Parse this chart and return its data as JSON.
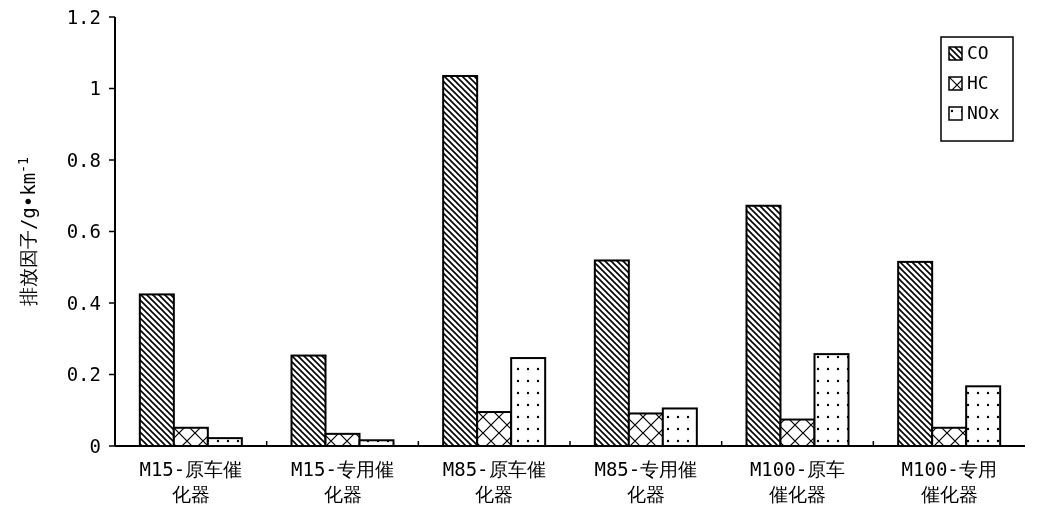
{
  "chart_data": {
    "type": "bar",
    "ylabel": "排放因子/g•km$^{-1}$",
    "categories": [
      "M15-原车催化器",
      "M15-专用催化器",
      "M85-原车催化器",
      "M85-专用催化器",
      "M100-原车催化器",
      "M100-专用催化器"
    ],
    "series": [
      {
        "name": "CO",
        "color": "#000000",
        "values": [
          0.424,
          0.253,
          1.035,
          0.519,
          0.672,
          0.515
        ]
      },
      {
        "name": "HC",
        "color": "#000000",
        "values": [
          0.051,
          0.034,
          0.095,
          0.091,
          0.074,
          0.051
        ]
      },
      {
        "name": "NOx",
        "color": "#000000",
        "values": [
          0.022,
          0.016,
          0.246,
          0.105,
          0.257,
          0.167
        ]
      }
    ],
    "ylim": [
      0,
      1.2
    ],
    "yticks": [
      0,
      0.2,
      0.4,
      0.6,
      0.8,
      1,
      1.2
    ],
    "legend": "top right"
  }
}
